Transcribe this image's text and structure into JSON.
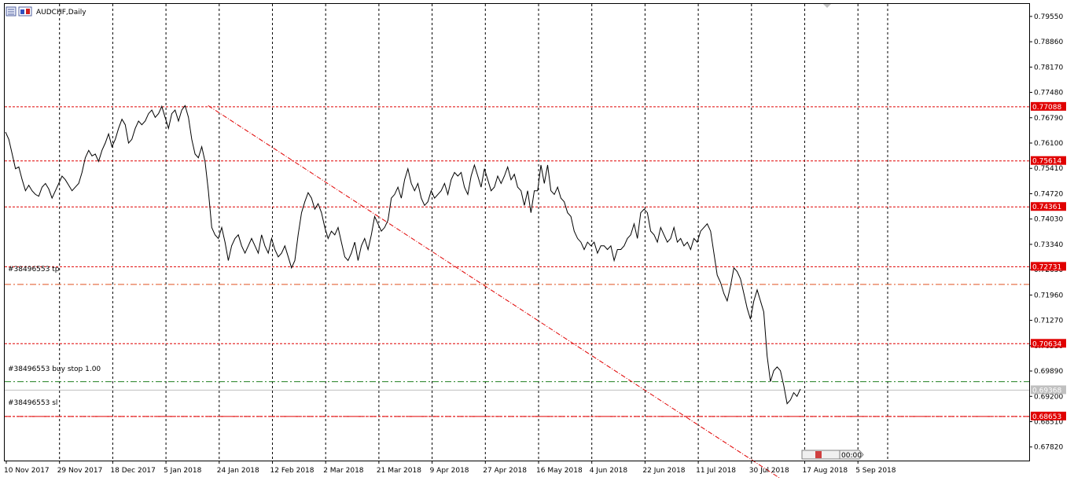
{
  "header": {
    "title": "AUDCHF,Daily"
  },
  "colors": {
    "background": "#ffffff",
    "price_line": "#000000",
    "grid": "#000000",
    "level_line": "#e00000",
    "tp_line": "#e05020",
    "pending_line": "#208020",
    "bid_line": "#c0c0c0",
    "level_label_bg": "#e00000",
    "bid_label_bg": "#c0c0c0"
  },
  "levels": [
    "0.77088",
    "0.75614",
    "0.74361",
    "0.72731",
    "0.70634",
    "0.68653"
  ],
  "orders": {
    "tp": {
      "label": "#38496553 tp",
      "price": 0.7225
    },
    "buy_stop": {
      "label": "#38496553 buy stop 1.00",
      "price": 0.696
    },
    "sl": {
      "label": "#38496553 sl",
      "price": 0.68653
    }
  },
  "bid": {
    "label": "0.69368"
  },
  "one_click": {
    "label": "00:00"
  },
  "chart_data": {
    "type": "line",
    "title": "AUDCHF,Daily",
    "y_range": [
      0.6745,
      0.7989
    ],
    "y_ticks": [
      "0.79550",
      "0.78860",
      "0.78170",
      "0.77480",
      "0.76790",
      "0.76100",
      "0.75410",
      "0.74720",
      "0.74030",
      "0.73340",
      "0.72650",
      "0.71960",
      "0.71270",
      "0.70580",
      "0.69890",
      "0.69200",
      "0.68510",
      "0.67820"
    ],
    "x_labels": [
      "10 Nov 2017",
      "29 Nov 2017",
      "18 Dec 2017",
      "5 Jan 2018",
      "24 Jan 2018",
      "12 Feb 2018",
      "2 Mar 2018",
      "21 Mar 2018",
      "9 Apr 2018",
      "27 Apr 2018",
      "16 May 2018",
      "4 Jun 2018",
      "22 Jun 2018",
      "11 Jul 2018",
      "30 Jul 2018",
      "17 Aug 2018",
      "5 Sep 2018"
    ],
    "trendline": {
      "start": [
        "24 Jan 2018",
        0.7712
      ],
      "end": [
        "5 Sep 2018",
        0.667
      ]
    },
    "grid": true,
    "series": [
      {
        "values": [
          0.764,
          0.762,
          0.758,
          0.754,
          0.7545,
          0.751,
          0.748,
          0.7495,
          0.748,
          0.747,
          0.7465,
          0.749,
          0.75,
          0.7485,
          0.746,
          0.748,
          0.75,
          0.752,
          0.751,
          0.7495,
          0.748,
          0.749,
          0.75,
          0.753,
          0.757,
          0.759,
          0.7575,
          0.758,
          0.756,
          0.759,
          0.761,
          0.7635,
          0.76,
          0.762,
          0.765,
          0.7675,
          0.766,
          0.761,
          0.762,
          0.765,
          0.767,
          0.766,
          0.767,
          0.769,
          0.77,
          0.768,
          0.769,
          0.771,
          0.768,
          0.765,
          0.769,
          0.77,
          0.767,
          0.77,
          0.7712,
          0.768,
          0.762,
          0.758,
          0.757,
          0.76,
          0.756,
          0.748,
          0.738,
          0.736,
          0.735,
          0.738,
          0.734,
          0.729,
          0.733,
          0.735,
          0.736,
          0.733,
          0.731,
          0.733,
          0.735,
          0.733,
          0.731,
          0.736,
          0.733,
          0.731,
          0.735,
          0.732,
          0.73,
          0.731,
          0.733,
          0.73,
          0.727,
          0.729,
          0.736,
          0.742,
          0.745,
          0.7475,
          0.746,
          0.743,
          0.7445,
          0.742,
          0.738,
          0.735,
          0.737,
          0.736,
          0.738,
          0.734,
          0.73,
          0.729,
          0.731,
          0.734,
          0.729,
          0.733,
          0.735,
          0.732,
          0.736,
          0.741,
          0.739,
          0.737,
          0.738,
          0.74,
          0.746,
          0.747,
          0.749,
          0.746,
          0.751,
          0.754,
          0.75,
          0.748,
          0.75,
          0.746,
          0.744,
          0.745,
          0.748,
          0.746,
          0.747,
          0.748,
          0.75,
          0.747,
          0.751,
          0.753,
          0.752,
          0.753,
          0.749,
          0.747,
          0.752,
          0.755,
          0.752,
          0.749,
          0.754,
          0.751,
          0.748,
          0.749,
          0.752,
          0.75,
          0.752,
          0.7545,
          0.751,
          0.7525,
          0.749,
          0.748,
          0.744,
          0.748,
          0.742,
          0.748,
          0.748,
          0.755,
          0.75,
          0.755,
          0.748,
          0.747,
          0.749,
          0.746,
          0.745,
          0.742,
          0.741,
          0.737,
          0.735,
          0.734,
          0.732,
          0.734,
          0.733,
          0.734,
          0.731,
          0.733,
          0.733,
          0.732,
          0.733,
          0.729,
          0.732,
          0.732,
          0.733,
          0.735,
          0.736,
          0.739,
          0.735,
          0.742,
          0.743,
          0.742,
          0.737,
          0.736,
          0.734,
          0.738,
          0.736,
          0.734,
          0.735,
          0.738,
          0.734,
          0.735,
          0.733,
          0.734,
          0.732,
          0.735,
          0.734,
          0.737,
          0.738,
          0.739,
          0.737,
          0.731,
          0.725,
          0.723,
          0.72,
          0.718,
          0.722,
          0.727,
          0.726,
          0.724,
          0.72,
          0.716,
          0.713,
          0.718,
          0.721,
          0.718,
          0.715,
          0.703,
          0.696,
          0.699,
          0.7,
          0.699,
          0.695,
          0.69,
          0.691,
          0.693,
          0.692,
          0.694
        ]
      }
    ]
  }
}
